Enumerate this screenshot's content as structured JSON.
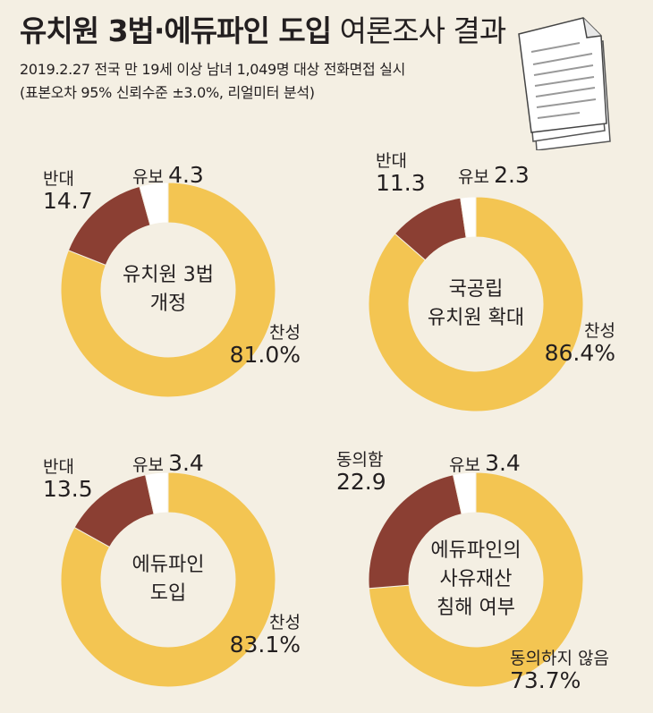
{
  "title": {
    "bold": "유치원 3법·에듀파인 도입",
    "light": "여론조사 결과"
  },
  "subtitle": [
    "2019.2.27 전국 만 19세 이상 남녀 1,049명 대상 전화면접 실시",
    "(표본오차 95% 신뢰수준 ±3.0%, 리얼미터 분석)"
  ],
  "colors": {
    "yes": "#f3c552",
    "no": "#8b3f33",
    "undecided": "#ffffff",
    "background": "#f4efe3"
  },
  "icon": "documents-icon",
  "chart_data": [
    {
      "type": "pie",
      "donut": true,
      "center_label": [
        "유치원 3법",
        "개정"
      ],
      "slices": [
        {
          "name": "찬성",
          "value": 81.0,
          "value_label": "81.0%",
          "color": "#f3c552"
        },
        {
          "name": "반대",
          "value": 14.7,
          "value_label": "14.7",
          "color": "#8b3f33"
        },
        {
          "name": "유보",
          "value": 4.3,
          "value_label": "4.3",
          "color": "#ffffff"
        }
      ]
    },
    {
      "type": "pie",
      "donut": true,
      "center_label": [
        "국공립",
        "유치원 확대"
      ],
      "slices": [
        {
          "name": "찬성",
          "value": 86.4,
          "value_label": "86.4%",
          "color": "#f3c552"
        },
        {
          "name": "반대",
          "value": 11.3,
          "value_label": "11.3",
          "color": "#8b3f33"
        },
        {
          "name": "유보",
          "value": 2.3,
          "value_label": "2.3",
          "color": "#ffffff"
        }
      ]
    },
    {
      "type": "pie",
      "donut": true,
      "center_label": [
        "에듀파인",
        "도입"
      ],
      "slices": [
        {
          "name": "찬성",
          "value": 83.1,
          "value_label": "83.1%",
          "color": "#f3c552"
        },
        {
          "name": "반대",
          "value": 13.5,
          "value_label": "13.5",
          "color": "#8b3f33"
        },
        {
          "name": "유보",
          "value": 3.4,
          "value_label": "3.4",
          "color": "#ffffff"
        }
      ]
    },
    {
      "type": "pie",
      "donut": true,
      "center_label": [
        "에듀파인의",
        "사유재산",
        "침해 여부"
      ],
      "slices": [
        {
          "name": "동의하지 않음",
          "value": 73.7,
          "value_label": "73.7%",
          "color": "#f3c552"
        },
        {
          "name": "동의함",
          "value": 22.9,
          "value_label": "22.9",
          "color": "#8b3f33"
        },
        {
          "name": "유보",
          "value": 3.4,
          "value_label": "3.4",
          "color": "#ffffff"
        }
      ]
    }
  ]
}
